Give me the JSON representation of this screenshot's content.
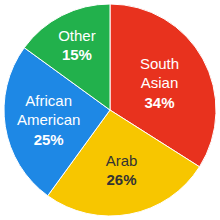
{
  "chart_data": {
    "type": "pie",
    "categories": [
      "South Asian",
      "Arab",
      "African American",
      "Other"
    ],
    "values": [
      34,
      26,
      25,
      15
    ],
    "value_labels": [
      "34%",
      "26%",
      "25%",
      "15%"
    ],
    "colors": [
      "#e8321e",
      "#f7c600",
      "#1e88e5",
      "#22b14c"
    ],
    "data_labels": true
  }
}
